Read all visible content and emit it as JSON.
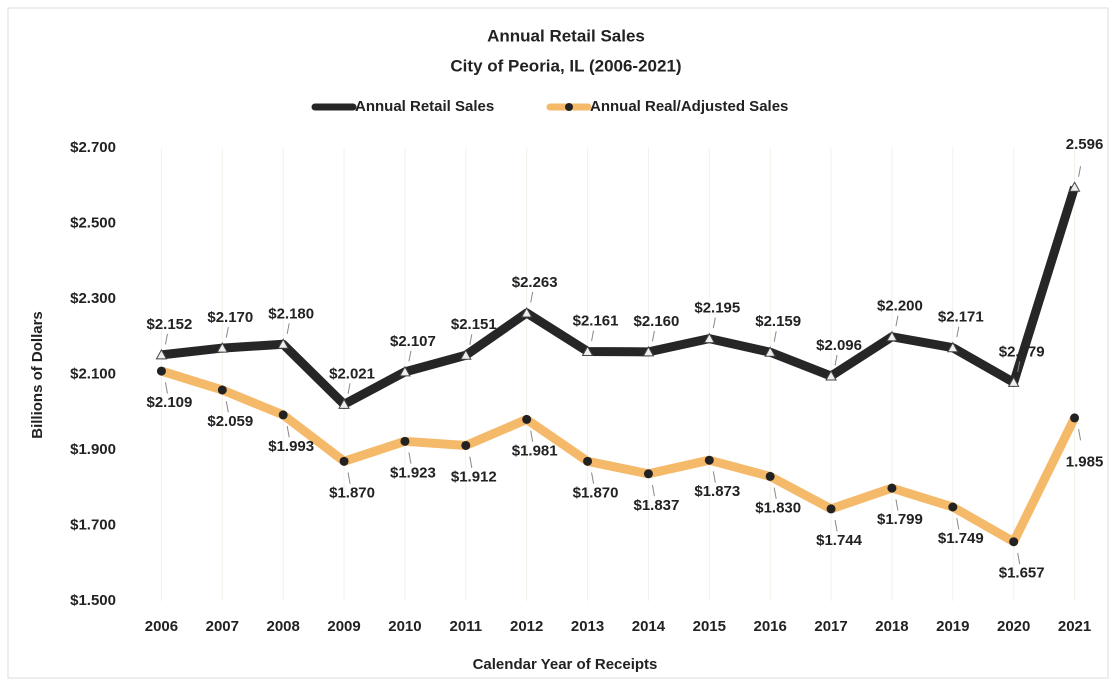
{
  "chart_data": {
    "type": "line",
    "title": "Annual Retail Sales",
    "subtitle": "City of Peoria, IL (2006-2021)",
    "y_label": "Billions of Dollars",
    "x_label": "Calendar Year of Receipts",
    "categories": [
      "2006",
      "2007",
      "2008",
      "2009",
      "2010",
      "2011",
      "2012",
      "2013",
      "2014",
      "2015",
      "2016",
      "2017",
      "2018",
      "2019",
      "2020",
      "2021"
    ],
    "series": [
      {
        "name": "Annual Retail Sales",
        "color": "#262626",
        "values": [
          2.152,
          2.17,
          2.18,
          2.021,
          2.107,
          2.151,
          2.263,
          2.161,
          2.16,
          2.195,
          2.159,
          2.096,
          2.2,
          2.171,
          2.079,
          2.596
        ],
        "value_labels": [
          "$2.152",
          "$2.170",
          "$2.180",
          "$2.021",
          "$2.107",
          "$2.151",
          "$2.263",
          "$2.161",
          "$2.160",
          "$2.195",
          "$2.159",
          "$2.096",
          "$2.200",
          "$2.171",
          "$2.079",
          "2.596"
        ]
      },
      {
        "name": "Annual Real/Adjusted Sales",
        "color": "#f5b96a",
        "values": [
          2.109,
          2.059,
          1.993,
          1.87,
          1.923,
          1.912,
          1.981,
          1.87,
          1.837,
          1.873,
          1.83,
          1.744,
          1.799,
          1.749,
          1.657,
          1.985
        ],
        "value_labels": [
          "$2.109",
          "$2.059",
          "$1.993",
          "$1.870",
          "$1.923",
          "$1.912",
          "$1.981",
          "$1.870",
          "$1.837",
          "$1.873",
          "$1.830",
          "$1.744",
          "$1.799",
          "$1.749",
          "$1.657",
          "1.985"
        ]
      }
    ],
    "ylim": [
      1.5,
      2.7
    ],
    "yticks": [
      {
        "value": 1.5,
        "label": "$1.500"
      },
      {
        "value": 1.7,
        "label": "$1.700"
      },
      {
        "value": 1.9,
        "label": "$1.900"
      },
      {
        "value": 2.1,
        "label": "$2.100"
      },
      {
        "value": 2.3,
        "label": "$2.300"
      },
      {
        "value": 2.5,
        "label": "$2.500"
      },
      {
        "value": 2.7,
        "label": "$2.700"
      }
    ],
    "grid": true,
    "legend": "top"
  }
}
